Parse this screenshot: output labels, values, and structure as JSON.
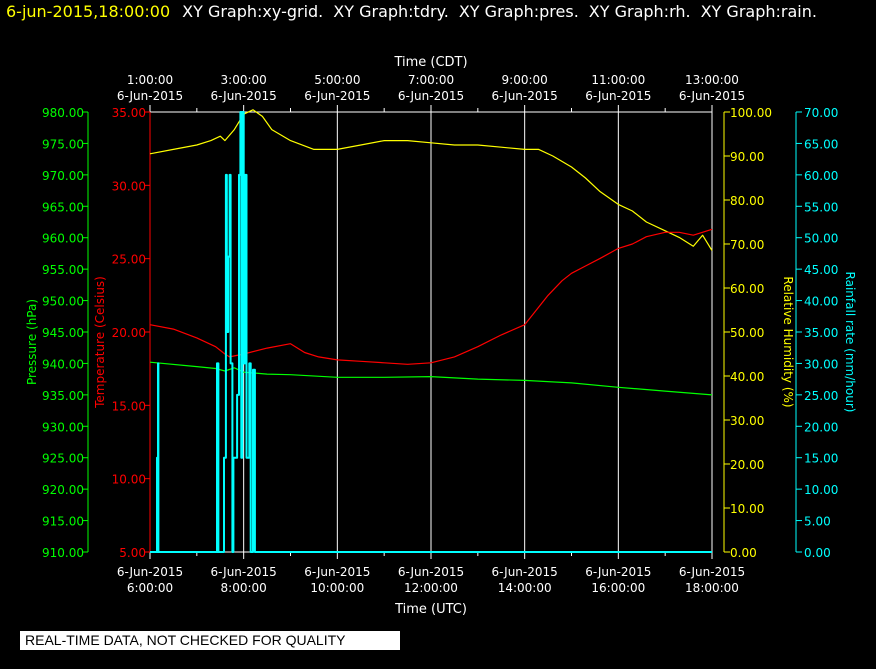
{
  "header": {
    "timestamp": "6-jun-2015,18:00:00",
    "graphs": [
      "XY Graph:xy-grid.",
      "XY Graph:tdry.",
      "XY Graph:pres.",
      "XY Graph:rh.",
      "XY Graph:rain."
    ]
  },
  "notice": "REAL-TIME DATA, NOT CHECKED FOR QUALITY",
  "colors": {
    "background": "#000000",
    "pressure": "#00ff00",
    "temperature": "#ff0000",
    "humidity": "#ffff00",
    "rain": "#00ffff",
    "grid": "#ffffff"
  },
  "chart_data": {
    "type": "line",
    "top_axis": {
      "title": "Time (CDT)",
      "ticks": [
        {
          "time": "1:00:00",
          "date": "6-Jun-2015"
        },
        {
          "time": "3:00:00",
          "date": "6-Jun-2015"
        },
        {
          "time": "5:00:00",
          "date": "6-Jun-2015"
        },
        {
          "time": "7:00:00",
          "date": "6-Jun-2015"
        },
        {
          "time": "9:00:00",
          "date": "6-Jun-2015"
        },
        {
          "time": "11:00:00",
          "date": "6-Jun-2015"
        },
        {
          "time": "13:00:00",
          "date": "6-Jun-2015"
        }
      ]
    },
    "bottom_axis": {
      "title": "Time (UTC)",
      "ticks": [
        {
          "date": "6-Jun-2015",
          "time": "6:00:00"
        },
        {
          "date": "6-Jun-2015",
          "time": "8:00:00"
        },
        {
          "date": "6-Jun-2015",
          "time": "10:00:00"
        },
        {
          "date": "6-Jun-2015",
          "time": "12:00:00"
        },
        {
          "date": "6-Jun-2015",
          "time": "14:00:00"
        },
        {
          "date": "6-Jun-2015",
          "time": "16:00:00"
        },
        {
          "date": "6-Jun-2015",
          "time": "18:00:00"
        }
      ],
      "xlim_hours_utc": [
        6,
        18
      ]
    },
    "axes": {
      "pressure": {
        "label": "Pressure (hPa)",
        "ylim": [
          910,
          980
        ],
        "ticks": [
          "910.00",
          "915.00",
          "920.00",
          "925.00",
          "930.00",
          "935.00",
          "940.00",
          "945.00",
          "950.00",
          "955.00",
          "960.00",
          "965.00",
          "970.00",
          "975.00",
          "980.00"
        ]
      },
      "temperature": {
        "label": "Temperature (Celsius)",
        "ylim": [
          5,
          35
        ],
        "ticks": [
          "5.00",
          "10.00",
          "15.00",
          "20.00",
          "25.00",
          "30.00",
          "35.00"
        ]
      },
      "humidity": {
        "label": "Relative Humidity (%)",
        "ylim": [
          0,
          100
        ],
        "ticks": [
          "0.00",
          "10.00",
          "20.00",
          "30.00",
          "40.00",
          "50.00",
          "60.00",
          "70.00",
          "80.00",
          "90.00",
          "100.00"
        ]
      },
      "rain": {
        "label": "Rainfall rate (mm/hour)",
        "ylim": [
          0,
          70
        ],
        "ticks": [
          "0.00",
          "5.00",
          "10.00",
          "15.00",
          "20.00",
          "25.00",
          "30.00",
          "35.00",
          "40.00",
          "45.00",
          "50.00",
          "55.00",
          "60.00",
          "65.00",
          "70.00"
        ]
      }
    },
    "series": [
      {
        "key": "humidity",
        "color": "#ffff00",
        "x": [
          6.0,
          6.5,
          7.0,
          7.3,
          7.5,
          7.6,
          7.8,
          8.0,
          8.2,
          8.4,
          8.6,
          9.0,
          9.5,
          10.0,
          10.5,
          11.0,
          11.5,
          12.0,
          12.5,
          13.0,
          13.5,
          14.0,
          14.3,
          14.6,
          15.0,
          15.3,
          15.6,
          16.0,
          16.3,
          16.6,
          17.0,
          17.3,
          17.6,
          17.8,
          18.0
        ],
        "y": [
          90.5,
          91.5,
          92.5,
          93.5,
          94.5,
          93.5,
          96,
          99.5,
          100.5,
          99,
          96,
          93.5,
          91.5,
          91.5,
          92.5,
          93.5,
          93.5,
          93,
          92.5,
          92.5,
          92,
          91.5,
          91.5,
          90,
          87.5,
          85,
          82,
          79,
          77.5,
          75,
          73,
          71.5,
          69.5,
          72,
          68.5
        ]
      },
      {
        "key": "temperature",
        "color": "#ff0000",
        "x": [
          6.0,
          6.5,
          7.0,
          7.4,
          7.6,
          7.7,
          8.0,
          8.5,
          9.0,
          9.3,
          9.6,
          10.0,
          10.5,
          11.0,
          11.5,
          12.0,
          12.5,
          13.0,
          13.5,
          14.0,
          14.5,
          14.8,
          15.0,
          15.3,
          15.6,
          16.0,
          16.3,
          16.6,
          17.0,
          17.3,
          17.6,
          18.0
        ],
        "y": [
          20.5,
          20.2,
          19.6,
          19.0,
          18.5,
          18.3,
          18.5,
          18.9,
          19.2,
          18.6,
          18.3,
          18.1,
          18.0,
          17.9,
          17.8,
          17.9,
          18.3,
          19.0,
          19.8,
          20.5,
          22.5,
          23.5,
          24.0,
          24.5,
          25.0,
          25.7,
          26.0,
          26.5,
          26.8,
          26.8,
          26.6,
          27.0
        ]
      },
      {
        "key": "pressure",
        "color": "#00ff00",
        "x": [
          6.0,
          7.0,
          7.4,
          7.6,
          7.8,
          8.0,
          8.5,
          9.0,
          10.0,
          11.0,
          12.0,
          13.0,
          14.0,
          15.0,
          16.0,
          17.0,
          18.0
        ],
        "y": [
          940.2,
          939.5,
          939.2,
          938.8,
          939.3,
          938.6,
          938.3,
          938.2,
          937.8,
          937.8,
          937.9,
          937.5,
          937.3,
          936.9,
          936.2,
          935.6,
          935.0
        ]
      },
      {
        "key": "rain",
        "color": "#00ffff",
        "type": "step",
        "x": [
          6.0,
          6.15,
          6.15,
          6.17,
          6.17,
          6.18,
          6.18,
          7.43,
          7.43,
          7.46,
          7.46,
          7.58,
          7.58,
          7.62,
          7.62,
          7.64,
          7.64,
          7.67,
          7.67,
          7.7,
          7.7,
          7.72,
          7.72,
          7.76,
          7.76,
          7.78,
          7.78,
          7.86,
          7.86,
          7.9,
          7.9,
          7.93,
          7.93,
          7.95,
          7.95,
          7.97,
          7.97,
          8.0,
          8.0,
          8.03,
          8.03,
          8.06,
          8.06,
          8.12,
          8.12,
          8.15,
          8.15,
          8.2,
          8.2,
          8.24,
          8.24,
          18.0
        ],
        "y": [
          0,
          0,
          15,
          15,
          30,
          30,
          0,
          0,
          30,
          30,
          0,
          0,
          15,
          15,
          60,
          60,
          35,
          35,
          47,
          47,
          60,
          60,
          30,
          30,
          0,
          0,
          15,
          15,
          25,
          25,
          60,
          60,
          70,
          70,
          15,
          15,
          70,
          70,
          30,
          30,
          60,
          60,
          15,
          15,
          30,
          30,
          0,
          0,
          29,
          29,
          0,
          0
        ]
      }
    ]
  }
}
